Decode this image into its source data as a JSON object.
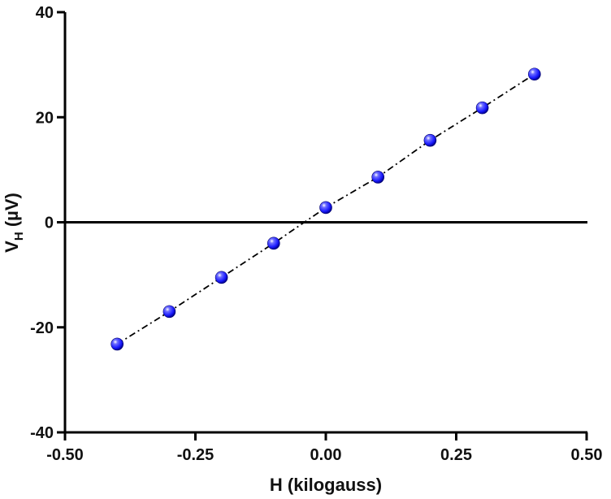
{
  "chart_data": {
    "type": "scatter",
    "xlabel": "H (kilogauss)",
    "ylabel": {
      "main": "V",
      "sub": "H",
      "unit": " (µV)"
    },
    "xlim": [
      -0.5,
      0.5
    ],
    "ylim": [
      -40,
      40
    ],
    "xticks": [
      -0.5,
      -0.25,
      0.0,
      0.25,
      0.5
    ],
    "xtick_labels": [
      "-0.50",
      "-0.25",
      "0.00",
      "0.25",
      "0.50"
    ],
    "yticks": [
      -40,
      -20,
      0,
      20,
      40
    ],
    "ytick_labels": [
      "-40",
      "-20",
      "0",
      "20",
      "40"
    ],
    "zero_line": true,
    "grid": false,
    "series": [
      {
        "marker": "sphere",
        "color": "#1a1aff",
        "line_style": "dash-dot",
        "line_color": "#000000",
        "x": [
          -0.4,
          -0.3,
          -0.2,
          -0.1,
          0.0,
          0.1,
          0.2,
          0.3,
          0.4
        ],
        "y": [
          -23.2,
          -17.0,
          -10.5,
          -4.0,
          2.8,
          8.6,
          15.6,
          21.8,
          28.2
        ]
      }
    ]
  }
}
